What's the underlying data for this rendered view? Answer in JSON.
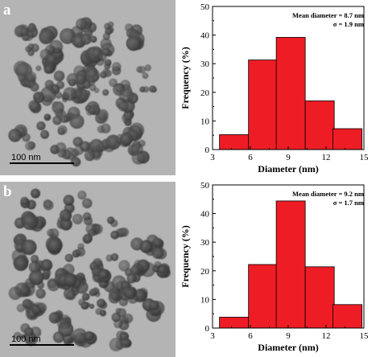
{
  "panels": [
    {
      "id": "a",
      "label": "a",
      "scale_bar_text": "100 nm",
      "stats": {
        "mean_text": "Mean diameter = 8.7 nm",
        "sigma_text": "σ = 1.9 nm"
      }
    },
    {
      "id": "b",
      "label": "b",
      "scale_bar_text": "100 nm",
      "stats": {
        "mean_text": "Mean diameter = 9.2 nm",
        "sigma_text": "σ = 1.7 nm"
      }
    }
  ],
  "colors": {
    "bar_fill": "#ee1c25",
    "bar_edge": "#000000",
    "tem_background": "#b4b4b4"
  },
  "chart_data": [
    {
      "type": "bar",
      "xlabel": "Diameter (nm)",
      "ylabel": "Frequency (%)",
      "x_ticks": [
        3,
        6,
        9,
        12,
        15
      ],
      "y_ticks": [
        0,
        10,
        20,
        30,
        40,
        50
      ],
      "xlim": [
        3,
        15
      ],
      "ylim": [
        0,
        50
      ],
      "bin_width": 2.3,
      "bins": [
        {
          "center": 4.7,
          "value": 5.2
        },
        {
          "center": 7.0,
          "value": 31.3
        },
        {
          "center": 9.2,
          "value": 39.2
        },
        {
          "center": 11.5,
          "value": 17.0
        },
        {
          "center": 13.7,
          "value": 7.3
        }
      ]
    },
    {
      "type": "bar",
      "xlabel": "Diameter (nm)",
      "ylabel": "Frequency (%)",
      "x_ticks": [
        3,
        6,
        9,
        12,
        15
      ],
      "y_ticks": [
        0,
        10,
        20,
        30,
        40,
        50
      ],
      "xlim": [
        3,
        15
      ],
      "ylim": [
        0,
        50
      ],
      "bin_width": 2.3,
      "bins": [
        {
          "center": 4.7,
          "value": 3.8
        },
        {
          "center": 7.0,
          "value": 22.2
        },
        {
          "center": 9.2,
          "value": 44.4
        },
        {
          "center": 11.5,
          "value": 21.4
        },
        {
          "center": 13.7,
          "value": 8.2
        }
      ]
    }
  ]
}
